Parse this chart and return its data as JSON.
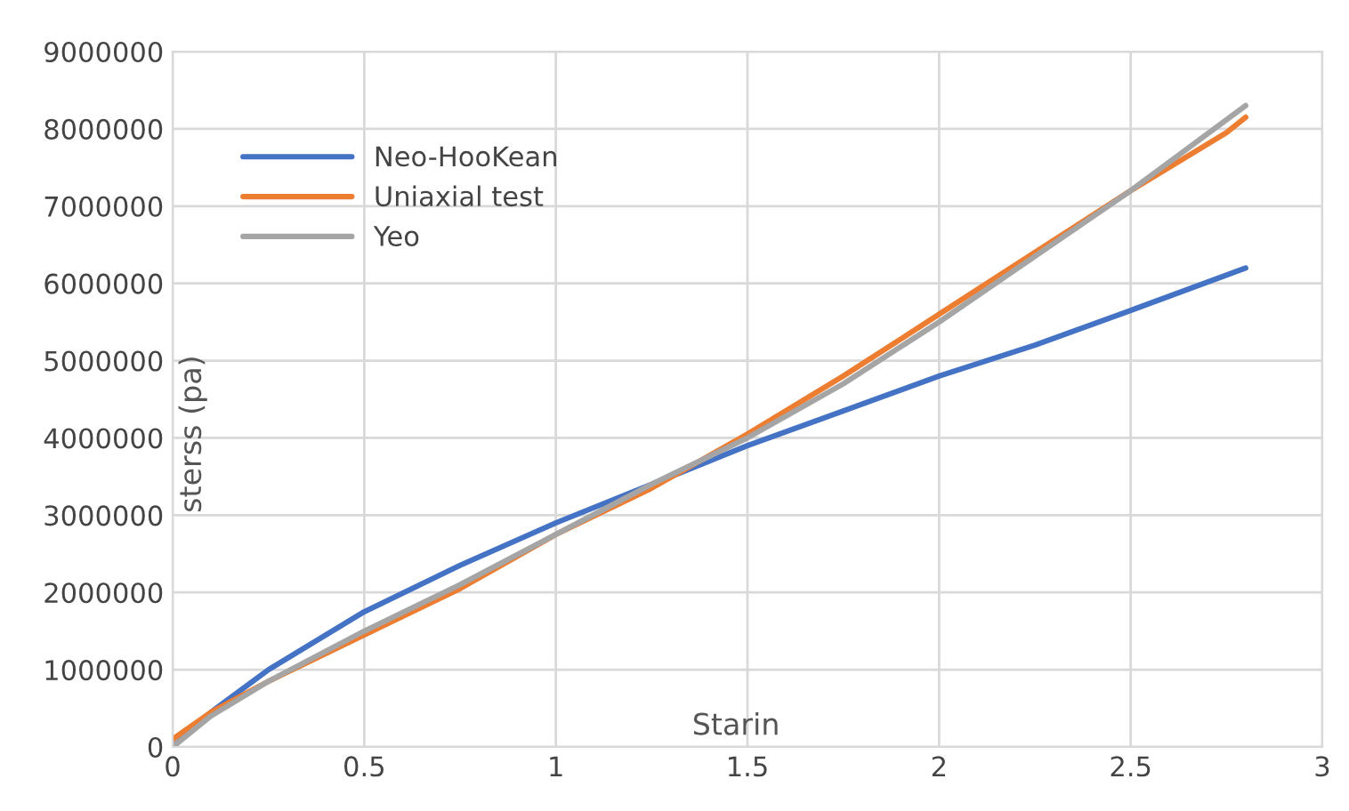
{
  "chart_data": {
    "type": "line",
    "xlabel": "Starin",
    "ylabel": "sterss (pa)",
    "xlim": [
      0,
      3
    ],
    "xticks": [
      0,
      0.5,
      1,
      1.5,
      2,
      2.5,
      3
    ],
    "ylim": [
      0,
      9000000
    ],
    "yticks": [
      0,
      1000000,
      2000000,
      3000000,
      4000000,
      5000000,
      6000000,
      7000000,
      8000000,
      9000000
    ],
    "grid": true,
    "legend": "top left",
    "marker": "none",
    "line_style": "solid",
    "series": [
      {
        "name": "Neo-HooKean",
        "color": "#4472c4",
        "x": [
          0,
          0.1,
          0.25,
          0.5,
          0.75,
          1,
          1.25,
          1.5,
          1.75,
          2,
          2.25,
          2.5,
          2.8
        ],
        "values": [
          0,
          450000,
          1000000,
          1750000,
          2350000,
          2900000,
          3400000,
          3900000,
          4350000,
          4800000,
          5200000,
          5650000,
          6200000
        ]
      },
      {
        "name": "Uniaxial test",
        "color": "#ed7d31",
        "x": [
          0,
          0.1,
          0.25,
          0.5,
          0.75,
          1,
          1.25,
          1.5,
          1.75,
          2,
          2.25,
          2.5,
          2.75,
          2.8
        ],
        "values": [
          100000,
          450000,
          850000,
          1450000,
          2050000,
          2750000,
          3350000,
          4050000,
          4800000,
          5600000,
          6400000,
          7200000,
          7950000,
          8150000
        ]
      },
      {
        "name": "Yeo",
        "color": "#a5a5a5",
        "x": [
          0,
          0.1,
          0.25,
          0.5,
          0.75,
          1,
          1.25,
          1.5,
          1.75,
          2,
          2.25,
          2.5,
          2.8
        ],
        "values": [
          0,
          400000,
          850000,
          1500000,
          2100000,
          2750000,
          3400000,
          4000000,
          4700000,
          5500000,
          6350000,
          7200000,
          8300000
        ]
      }
    ]
  }
}
